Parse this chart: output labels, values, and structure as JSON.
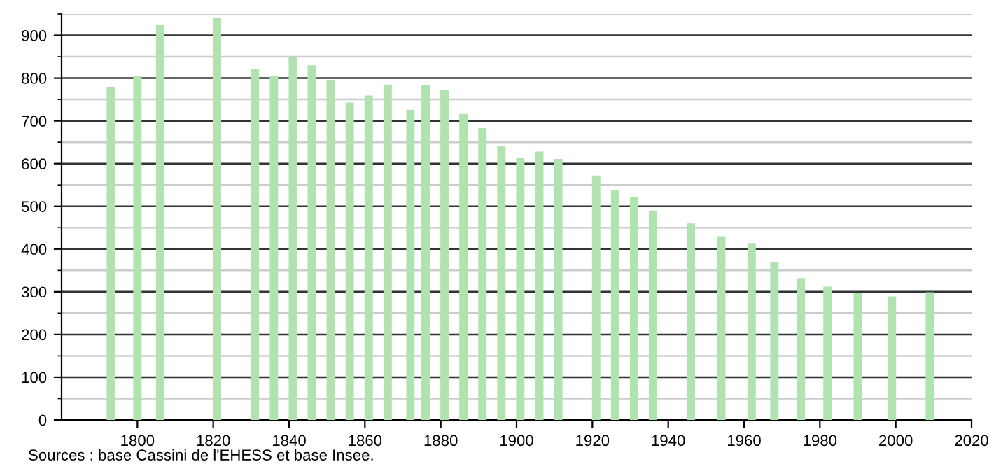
{
  "chart_data": {
    "type": "bar",
    "x": [
      1793,
      1800,
      1806,
      1821,
      1831,
      1836,
      1841,
      1846,
      1851,
      1856,
      1861,
      1866,
      1872,
      1876,
      1881,
      1886,
      1891,
      1896,
      1901,
      1906,
      1911,
      1921,
      1926,
      1931,
      1936,
      1946,
      1954,
      1962,
      1968,
      1975,
      1982,
      1990,
      1999,
      2009
    ],
    "values": [
      778,
      805,
      925,
      940,
      821,
      805,
      850,
      830,
      795,
      743,
      759,
      785,
      726,
      784,
      772,
      716,
      683,
      641,
      614,
      628,
      611,
      572,
      539,
      522,
      490,
      460,
      430,
      414,
      369,
      332,
      312,
      298,
      289,
      299
    ],
    "color": "#b0e3b0",
    "xlim": [
      1780,
      2020
    ],
    "xticks": [
      1800,
      1820,
      1840,
      1860,
      1880,
      1900,
      1920,
      1940,
      1960,
      1980,
      2000,
      2020
    ],
    "ylim": [
      0,
      950
    ],
    "yticks": [
      0,
      100,
      200,
      300,
      400,
      500,
      600,
      700,
      800,
      900
    ],
    "grid": "y",
    "annotations": [
      "Sources : base Cassini de l'EHESS et base Insee."
    ]
  }
}
